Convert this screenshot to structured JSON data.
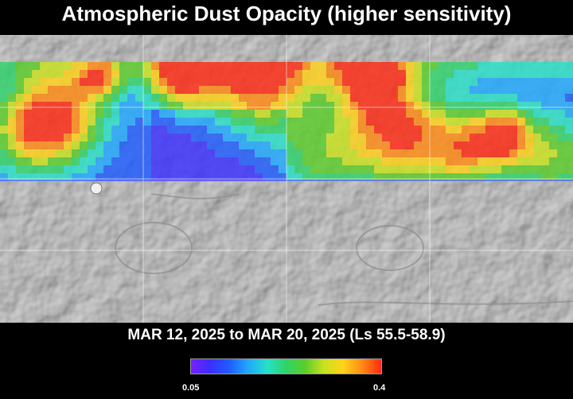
{
  "title": "Atmospheric Dust Opacity (higher sensitivity)",
  "subtitle": "MAR 12, 2025 to MAR 20, 2025 (Ls 55.5-58.9)",
  "colorbar": {
    "min_label": "0.05",
    "max_label": "0.4",
    "colors": [
      "#7a1dff",
      "#3a2fff",
      "#1f5cff",
      "#1fa8ff",
      "#27e0c8",
      "#2fd36a",
      "#5ccd2a",
      "#c9e21f",
      "#ffd21a",
      "#ff8a14",
      "#ff2a12"
    ]
  },
  "map_colors": {
    "terrain": "#c9c9c9",
    "terrain_dark": "#9e9e9e",
    "grid": "#ffffff",
    "band_edge": "#5a5aff"
  }
}
